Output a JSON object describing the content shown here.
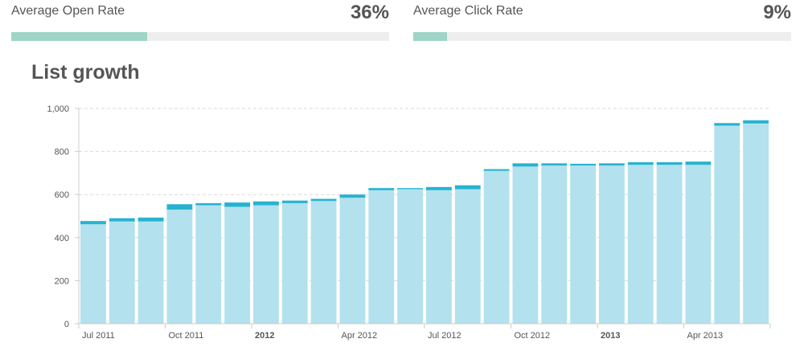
{
  "stats": {
    "open_rate": {
      "label": "Average Open Rate",
      "value": "36%",
      "fraction": 0.36,
      "fill_color": "#9ed5c7"
    },
    "click_rate": {
      "label": "Average Click Rate",
      "value": "9%",
      "fraction": 0.09,
      "fill_color": "#9ed5c7"
    }
  },
  "section_title": "List growth",
  "chart_data": {
    "type": "bar",
    "stacked": true,
    "grid": true,
    "ylim": [
      0,
      1000
    ],
    "yticks": [
      0,
      200,
      400,
      600,
      800,
      1000
    ],
    "ytick_labels": [
      "0",
      "200",
      "400",
      "600",
      "800",
      "1,000"
    ],
    "xtick_labels": [
      {
        "bar_index": 0,
        "label": "Jul 2011",
        "bold": false
      },
      {
        "bar_index": 3,
        "label": "Oct 2011",
        "bold": false
      },
      {
        "bar_index": 6,
        "label": "2012",
        "bold": true
      },
      {
        "bar_index": 9,
        "label": "Apr 2012",
        "bold": false
      },
      {
        "bar_index": 12,
        "label": "Jul 2012",
        "bold": false
      },
      {
        "bar_index": 15,
        "label": "Oct 2012",
        "bold": false
      },
      {
        "bar_index": 18,
        "label": "2013",
        "bold": true
      },
      {
        "bar_index": 21,
        "label": "Apr 2013",
        "bold": false
      }
    ],
    "colors": {
      "base": "#b3e1ee",
      "top": "#26b3d1"
    },
    "series": [
      {
        "values": [
          462,
          475,
          475,
          530,
          550,
          543,
          550,
          560,
          570,
          585,
          620,
          625,
          620,
          625,
          710,
          730,
          735,
          735,
          735,
          738,
          738,
          738,
          920,
          930
        ]
      },
      {
        "values": [
          15,
          15,
          18,
          25,
          10,
          20,
          18,
          12,
          10,
          15,
          10,
          5,
          15,
          18,
          8,
          15,
          10,
          8,
          10,
          12,
          12,
          15,
          12,
          15
        ]
      }
    ]
  }
}
